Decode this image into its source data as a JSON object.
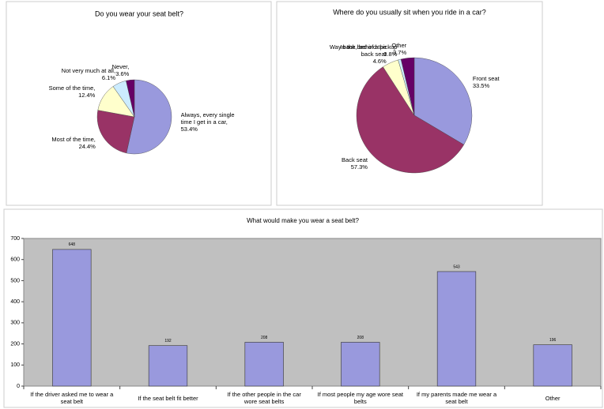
{
  "chart_data": [
    {
      "type": "pie",
      "title": "Do you wear your seat belt?",
      "categories": [
        "Always, every single time I get in a car,",
        "Most of the time,",
        "Some of the time,",
        "Not very much at all,",
        "Never,"
      ],
      "values": [
        53.4,
        24.4,
        12.4,
        6.1,
        3.6
      ],
      "value_labels": [
        "53.4%",
        "24.4%",
        "12.4%",
        "6.1%",
        "3.6%"
      ],
      "colors": [
        "#9999dd",
        "#993366",
        "#ffffcc",
        "#ccecff",
        "#660066"
      ]
    },
    {
      "type": "pie",
      "title": "Where do you usually sit when you ride in a car?",
      "categories": [
        "Front seat",
        "Back seat",
        "Way back, behind the back seat",
        "In the bed of a pickup",
        "Other"
      ],
      "values": [
        33.5,
        57.3,
        4.6,
        0.8,
        3.7
      ],
      "value_labels": [
        "33.5%",
        "57.3%",
        "4.6%",
        "0.8%",
        "3.7%"
      ],
      "colors": [
        "#9999dd",
        "#993366",
        "#ffffcc",
        "#ccecff",
        "#660066"
      ]
    },
    {
      "type": "bar",
      "title": "What would make you wear a seat belt?",
      "categories": [
        "If the driver asked me to wear a seat belt",
        "If the seat belt fit better",
        "If the other people in the car wore seat belts",
        "If most people my age wore seat belts",
        "If my parents made me wear a seat belt",
        "Other"
      ],
      "values": [
        648,
        192,
        208,
        208,
        543,
        196
      ],
      "color": "#9999dd",
      "ylim": [
        0,
        700
      ],
      "yticks": [
        0,
        100,
        200,
        300,
        400,
        500,
        600,
        700
      ],
      "grid": false
    }
  ]
}
